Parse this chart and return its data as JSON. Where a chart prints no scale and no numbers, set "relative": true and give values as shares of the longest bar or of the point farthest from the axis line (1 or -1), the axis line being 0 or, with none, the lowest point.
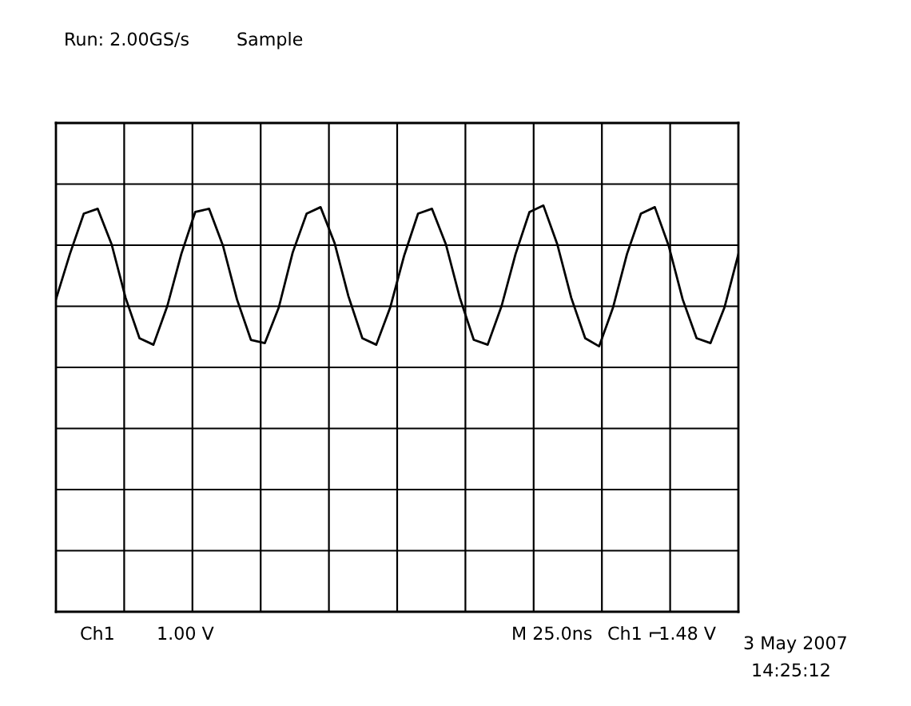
{
  "chart_data": {
    "type": "line",
    "relative": true,
    "grid": true,
    "color": "#000000",
    "categories": [
      null,
      null,
      null,
      null,
      null,
      null,
      null,
      null,
      null,
      null,
      null,
      null,
      null,
      null,
      null,
      null,
      null,
      null,
      null,
      null,
      null,
      null,
      null,
      null,
      null,
      null,
      null,
      null,
      null,
      null,
      null,
      null,
      null,
      null,
      null,
      null,
      null,
      null,
      null,
      null,
      null,
      null,
      null,
      null,
      null,
      null,
      null,
      null,
      null,
      null
    ],
    "values": [
      0.42,
      0.7,
      0.95,
      0.98,
      0.76,
      0.43,
      0.18,
      0.14,
      0.38,
      0.7,
      0.96,
      0.98,
      0.75,
      0.42,
      0.17,
      0.15,
      0.37,
      0.71,
      0.95,
      0.99,
      0.77,
      0.44,
      0.18,
      0.14,
      0.37,
      0.69,
      0.95,
      0.98,
      0.76,
      0.43,
      0.17,
      0.14,
      0.38,
      0.7,
      0.96,
      1.0,
      0.76,
      0.43,
      0.18,
      0.13,
      0.37,
      0.7,
      0.95,
      0.99,
      0.75,
      0.42,
      0.18,
      0.15,
      0.37,
      0.7
    ],
    "annotations": [
      "Run: 2.00GS/s",
      "Sample",
      "Ch1",
      "1.00 V",
      "M 25.0ns",
      "Ch1 ⌐",
      "1.48 V",
      "3 May 2007",
      "14:25:12"
    ]
  }
}
